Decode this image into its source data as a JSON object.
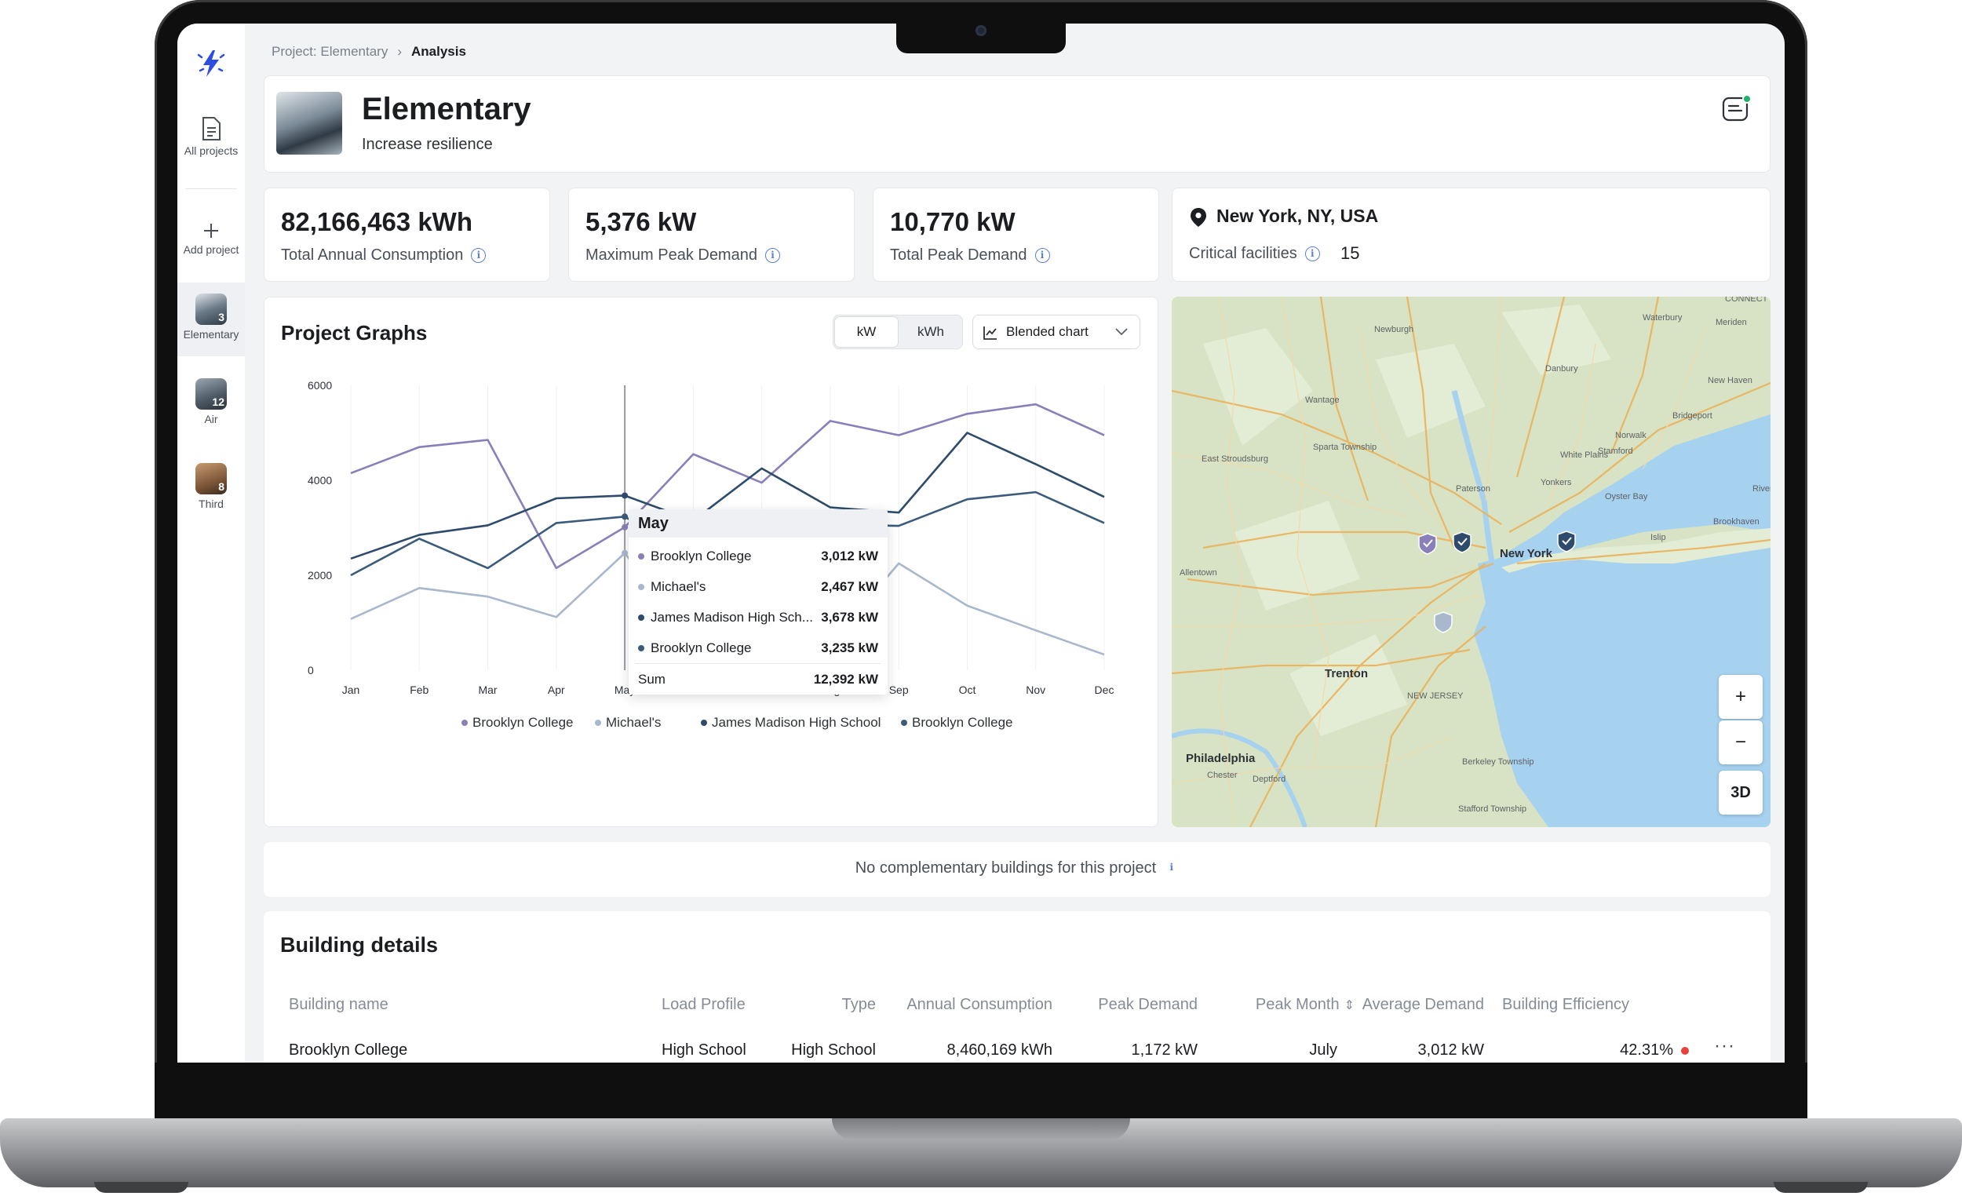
{
  "breadcrumb": {
    "project": "Project: Elementary",
    "current": "Analysis"
  },
  "sidebar": {
    "all_projects": "All projects",
    "add_project": "Add project",
    "projects": [
      {
        "label": "Elementary",
        "count": "3",
        "active": true
      },
      {
        "label": "Air",
        "count": "12"
      },
      {
        "label": "Third",
        "count": "8"
      }
    ]
  },
  "project": {
    "title": "Elementary",
    "subtitle": "Increase resilience"
  },
  "stats": [
    {
      "value": "82,166,463 kWh",
      "label": "Total Annual Consumption"
    },
    {
      "value": "5,376 kW",
      "label": "Maximum Peak Demand"
    },
    {
      "value": "10,770 kW",
      "label": "Total Peak Demand"
    }
  ],
  "location": {
    "city": "New York, NY, USA",
    "critical_label": "Critical facilities",
    "critical_value": "15"
  },
  "graph": {
    "title": "Project Graphs",
    "unit_kw": "kW",
    "unit_kwh": "kWh",
    "chart_mode": "Blended chart"
  },
  "chart_data": {
    "type": "line",
    "categories": [
      "Jan",
      "Feb",
      "Mar",
      "Apr",
      "May",
      "Jun",
      "Jul",
      "Aug",
      "Sep",
      "Oct",
      "Nov",
      "Dec"
    ],
    "ylim": [
      0,
      6000
    ],
    "yticks": [
      "0",
      "2000",
      "4000",
      "6000"
    ],
    "series": [
      {
        "name": "Brooklyn College",
        "color": "#8a7fb8",
        "values": [
          4150,
          4700,
          4850,
          2150,
          3012,
          4550,
          3950,
          5250,
          4950,
          5400,
          5600,
          4950
        ]
      },
      {
        "name": "Michael's",
        "color": "#a9b8cc",
        "values": [
          1080,
          1730,
          1550,
          1120,
          2467,
          540,
          690,
          550,
          2250,
          1360,
          840,
          330
        ]
      },
      {
        "name": "James Madison High School",
        "color": "#2e4b6b",
        "values": [
          2350,
          2850,
          3050,
          3620,
          3678,
          3150,
          4250,
          3430,
          3320,
          5000,
          4340,
          3650
        ]
      },
      {
        "name": "Brooklyn College",
        "color": "#3a5c7a",
        "values": [
          2000,
          2770,
          2150,
          3100,
          3235,
          2350,
          2650,
          3070,
          3040,
          3600,
          3750,
          3100
        ]
      }
    ],
    "legend": [
      "Brooklyn College",
      "Michael's",
      "James Madison High School",
      "Brooklyn College"
    ]
  },
  "tooltip": {
    "title": "May",
    "rows": [
      {
        "name": "Brooklyn College",
        "value": "3,012 kW",
        "color": "#8a7fb8"
      },
      {
        "name": "Michael's",
        "value": "2,467 kW",
        "color": "#a9b8cc"
      },
      {
        "name": "James Madison High Sch...",
        "value": "3,678 kW",
        "color": "#2e4b6b"
      },
      {
        "name": "Brooklyn College",
        "value": "3,235 kW",
        "color": "#3a5c7a"
      }
    ],
    "sum_label": "Sum",
    "sum_value": "12,392 kW"
  },
  "map": {
    "labels": [
      "Newburgh",
      "Danbury",
      "Waterbury",
      "Meriden",
      "New Haven",
      "Bridgeport",
      "Norwalk",
      "Stamford",
      "White Plains",
      "Yonkers",
      "Oyster Bay",
      "Paterson",
      "New York",
      "Islip",
      "Brookhaven",
      "Wantage",
      "Sparta Township",
      "East Stroudsburg",
      "Allentown",
      "Trenton",
      "NEW JERSEY",
      "Philadelphia",
      "Chester",
      "Deptford",
      "Berkeley Township",
      "Stafford Township",
      "CONNECT",
      "Riverhead"
    ],
    "zoom_in": "+",
    "zoom_out": "−",
    "mode_3d": "3D"
  },
  "complementary": {
    "text": "No complementary buildings for this project"
  },
  "buildings": {
    "title": "Building details",
    "columns": [
      "Building name",
      "Load Profile",
      "Type",
      "Annual Consumption",
      "Peak Demand",
      "Peak Month",
      "Average Demand",
      "Building Efficiency"
    ],
    "rows": [
      {
        "name": "Brooklyn College",
        "load": "High School",
        "type": "High School",
        "annual": "8,460,169 kWh",
        "peak": "1,172 kW",
        "month": "July",
        "avg": "3,012 kW",
        "eff": "42.31%"
      }
    ]
  }
}
